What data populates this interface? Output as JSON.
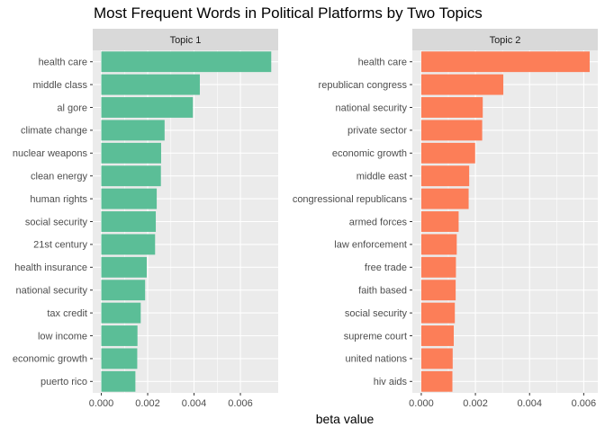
{
  "chart_data": {
    "type": "bar",
    "orientation": "horizontal",
    "title": "Most Frequent Words in Political Platforms by Two Topics",
    "xlabel": "beta value",
    "ylabel": "",
    "grid": true,
    "panels": [
      {
        "strip_label": "Topic 1",
        "color": "#5BBE97",
        "xlim": [
          -0.00037,
          0.00763
        ],
        "xticks": [
          0.0,
          0.002,
          0.004,
          0.006
        ],
        "xtick_labels": [
          "0.000",
          "0.002",
          "0.004",
          "0.006"
        ],
        "categories": [
          "health care",
          "middle class",
          "al gore",
          "climate change",
          "nuclear weapons",
          "clean energy",
          "human rights",
          "social security",
          "21st century",
          "health insurance",
          "national security",
          "tax credit",
          "low income",
          "economic growth",
          "puerto rico"
        ],
        "values": [
          0.00733,
          0.00425,
          0.00395,
          0.00273,
          0.00258,
          0.00257,
          0.00239,
          0.00235,
          0.00232,
          0.00196,
          0.00189,
          0.0017,
          0.00156,
          0.00155,
          0.00147
        ]
      },
      {
        "strip_label": "Topic 2",
        "color": "#FC7E58",
        "xlim": [
          -0.00033,
          0.00652
        ],
        "xticks": [
          0.0,
          0.002,
          0.004,
          0.006
        ],
        "xtick_labels": [
          "0.000",
          "0.002",
          "0.004",
          "0.006"
        ],
        "categories": [
          "health care",
          "republican congress",
          "national security",
          "private sector",
          "economic growth",
          "middle east",
          "congressional republicans",
          "armed forces",
          "law enforcement",
          "free trade",
          "faith based",
          "social security",
          "supreme court",
          "united nations",
          "hiv aids"
        ],
        "values": [
          0.00622,
          0.00303,
          0.00227,
          0.00225,
          0.00199,
          0.00177,
          0.00175,
          0.00138,
          0.00131,
          0.00128,
          0.00127,
          0.00124,
          0.0012,
          0.00116,
          0.00115
        ]
      }
    ]
  }
}
